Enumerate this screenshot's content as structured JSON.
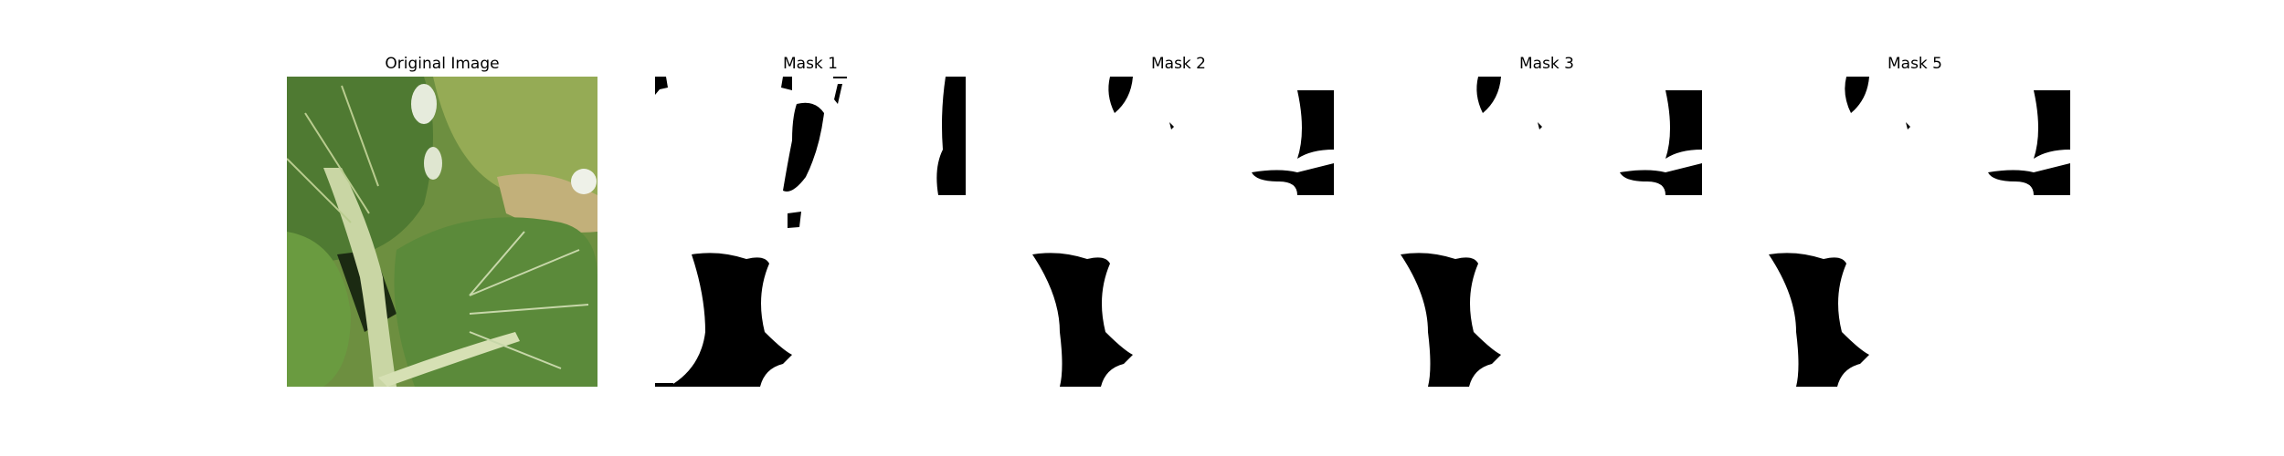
{
  "panels": [
    {
      "title": "Original Image",
      "kind": "photo"
    },
    {
      "title": "Mask 1",
      "kind": "mask"
    },
    {
      "title": "Mask 2",
      "kind": "mask"
    },
    {
      "title": "Mask 3",
      "kind": "mask"
    },
    {
      "title": "Mask 5",
      "kind": "mask"
    }
  ],
  "colors": {
    "background": "#ffffff",
    "mask_fill": "#000000",
    "leaf_dark": "#3f6a2c",
    "leaf_mid": "#5e8a3c",
    "leaf_light": "#8fae5a",
    "stem": "#c9d6a4",
    "tan_patch": "#c2b07a"
  }
}
